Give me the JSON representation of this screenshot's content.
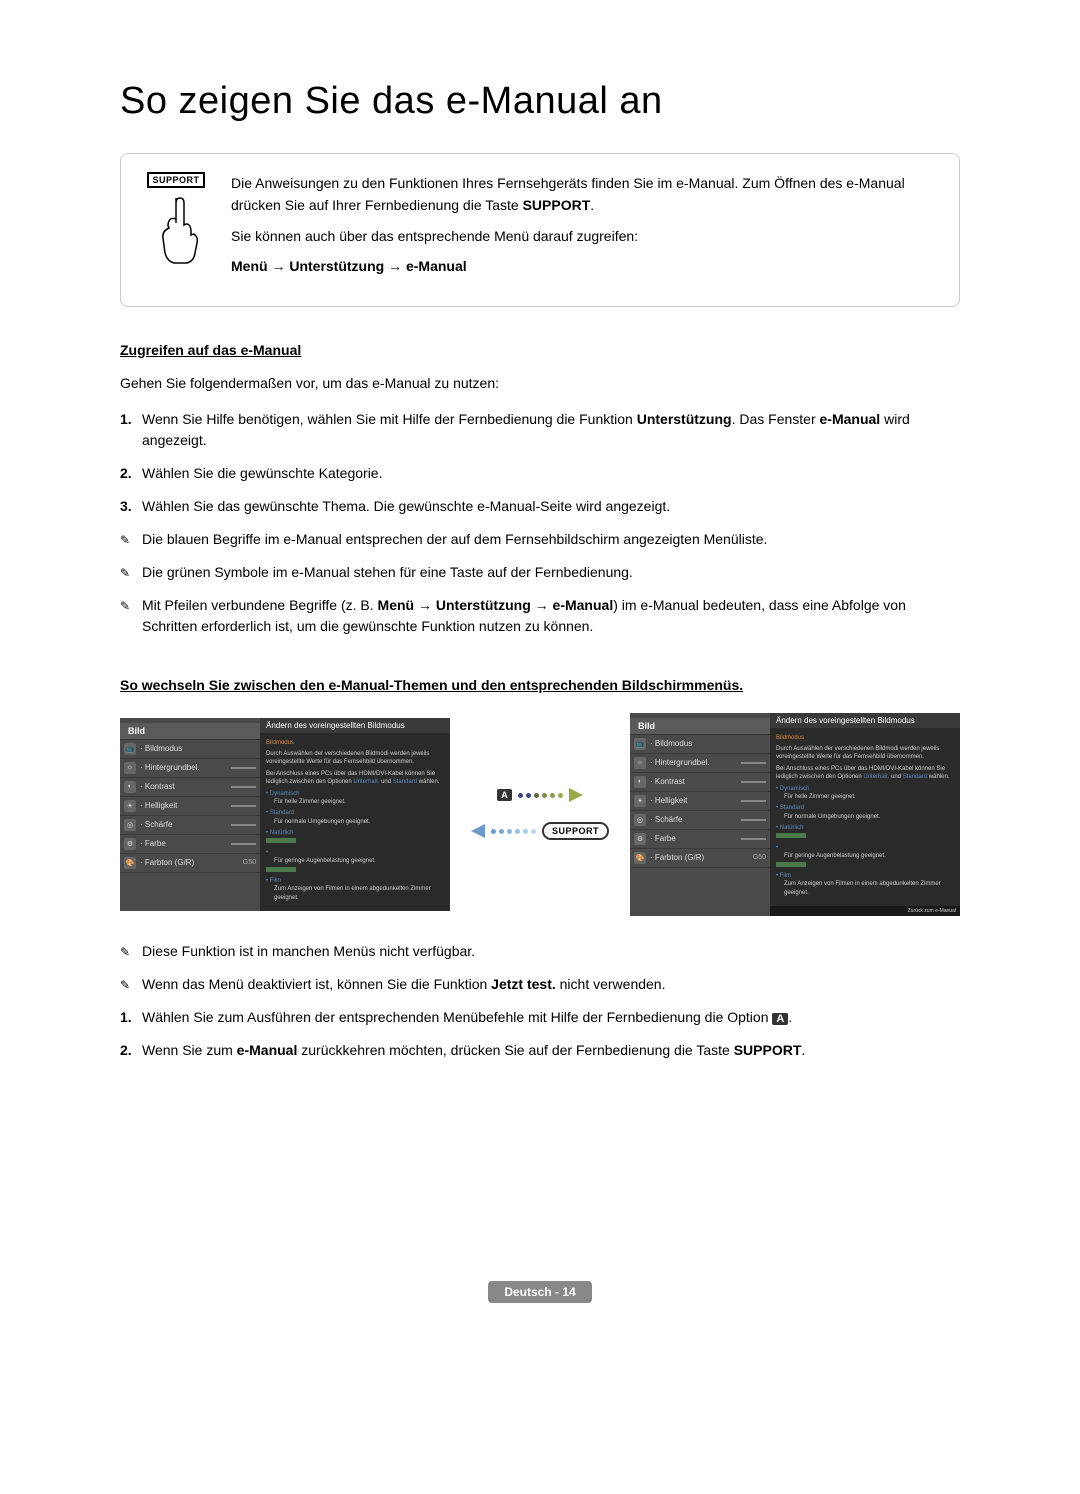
{
  "page_title": "So zeigen Sie das e-Manual an",
  "intro": {
    "support_badge": "SUPPORT",
    "p1": "Die Anweisungen zu den Funktionen Ihres Fernsehgeräts finden Sie im e-Manual. Zum Öffnen des e-Manual drücken Sie auf Ihrer Fernbedienung die Taste ",
    "p1_bold": "SUPPORT",
    "p1_end": ".",
    "p2": "Sie können auch über das entsprechende Menü darauf zugreifen:",
    "p3": "Menü → Unterstützung → e-Manual"
  },
  "section1": {
    "heading": "Zugreifen auf das e-Manual",
    "intro": "Gehen Sie folgendermaßen vor, um das e-Manual zu nutzen:",
    "steps": [
      {
        "num": "1.",
        "pre": "Wenn Sie Hilfe benötigen, wählen Sie mit Hilfe der Fernbedienung die Funktion ",
        "bold": "Unterstützung",
        "post": ". Das Fenster ",
        "bold2": "e-Manual",
        "post2": " wird angezeigt."
      },
      {
        "num": "2.",
        "text": "Wählen Sie die gewünschte Kategorie."
      },
      {
        "num": "3.",
        "text": "Wählen Sie das gewünschte Thema. Die gewünschte e-Manual-Seite wird angezeigt."
      }
    ],
    "notes": [
      {
        "text": "Die blauen Begriffe im e-Manual entsprechen der auf dem Fernsehbildschirm angezeigten Menüliste."
      },
      {
        "text": "Die grünen Symbole im e-Manual stehen für eine Taste auf der Fernbedienung."
      },
      {
        "pre": "Mit Pfeilen verbundene Begriffe (z. B. ",
        "bold": "Menü → Unterstützung → e-Manual",
        "post": ") im e-Manual bedeuten, dass eine Abfolge von Schritten erforderlich ist, um die gewünschte Funktion nutzen zu können."
      }
    ]
  },
  "section2": {
    "heading": "So wechseln Sie zwischen den e-Manual-Themen und den entsprechenden Bildschirmmenüs.",
    "menu": {
      "header": "Bild",
      "items": [
        {
          "label": "Bildmodus",
          "value": ""
        },
        {
          "label": "Hintergrundbel.",
          "slider": true
        },
        {
          "label": "Kontrast",
          "slider": true
        },
        {
          "label": "Helligkeit",
          "slider": true
        },
        {
          "label": "Schärfe",
          "slider": true
        },
        {
          "label": "Farbe",
          "slider": true
        },
        {
          "label": "Farbton (G/R)",
          "value": "G50"
        }
      ]
    },
    "content": {
      "header": "Ändern des voreingestellten Bildmodus",
      "lines": [
        {
          "color": "#d68a3a",
          "text": "Bildmodus"
        },
        {
          "text": "Durch Auswählen der verschiedenen Bildmodi werden jeweils voreingestellte Werte für das Fernsehbild übernommen."
        },
        {
          "text": "Bei Anschluss eines PCs über das HDMI/DVI-Kabel können Sie lediglich zwischen den Optionen ",
          "blue1": "Unterhalt.",
          "mid": " und ",
          "blue2": "Standard",
          "end": " wählen."
        },
        {
          "bullet": "Dynamisch",
          "desc": "Für helle Zimmer geeignet."
        },
        {
          "bullet": "Standard",
          "desc": "Für normale Umgebungen geeignet."
        },
        {
          "bullet": "Natürlich",
          "desc": ""
        },
        {
          "bullet": "",
          "desc": "Für geringe Augenbelastung geeignet."
        },
        {
          "bullet": "Film",
          "desc": "Zum Anzeigen von Filmen in einem abgedunkelten Zimmer geeignet."
        }
      ]
    },
    "button_a": "A",
    "button_support": "SUPPORT",
    "arrow_right_colors": [
      "#374a7a",
      "#374a7a",
      "#5a6c3a",
      "#7a8a4a",
      "#8a9a4f",
      "#9aa84f"
    ],
    "arrow_left_colors": [
      "#6b9ac4",
      "#7aa8d0",
      "#8ab4d8",
      "#9ac0e0",
      "#aacce8",
      "#bad8f0"
    ],
    "notes": [
      {
        "text": "Diese Funktion ist in manchen Menüs nicht verfügbar."
      },
      {
        "pre": "Wenn das Menü deaktiviert ist, können Sie die Funktion ",
        "bold": "Jetzt test.",
        "post": " nicht verwenden."
      }
    ],
    "steps": [
      {
        "num": "1.",
        "pre": "Wählen Sie zum Ausführen der entsprechenden Menübefehle mit Hilfe der Fernbedienung die Option ",
        "badge": "A",
        "post": "."
      },
      {
        "num": "2.",
        "pre": "Wenn Sie zum ",
        "bold": "e-Manual",
        "mid": " zurückkehren möchten, drücken Sie auf der Fernbedienung die Taste ",
        "bold2": "SUPPORT",
        "post": "."
      }
    ]
  },
  "footer": "Deutsch - 14"
}
